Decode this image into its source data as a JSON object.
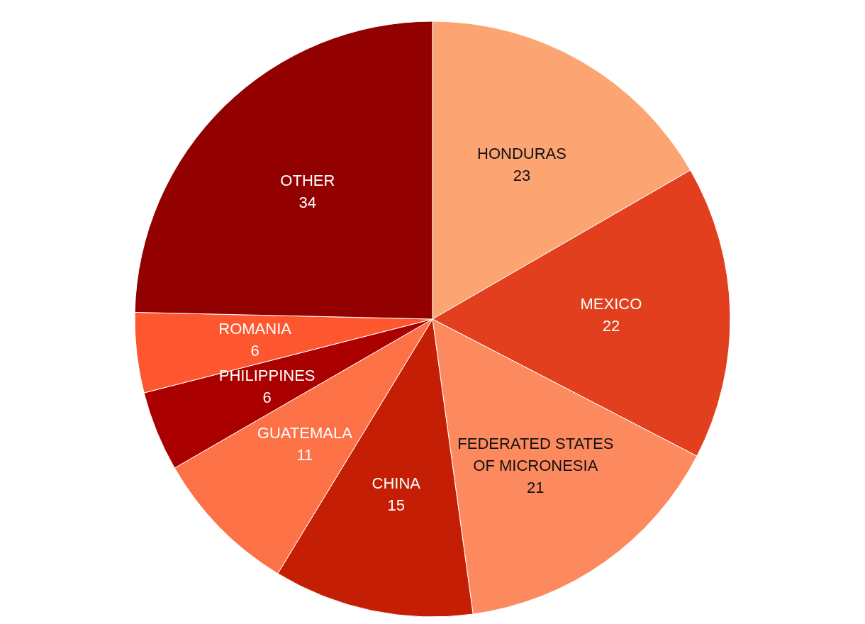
{
  "chart_data": {
    "type": "pie",
    "categories": [
      "HONDURAS",
      "MEXICO",
      "FEDERATED STATES OF MICRONESIA",
      "CHINA",
      "GUATEMALA",
      "PHILIPPINES",
      "ROMANIA",
      "OTHER"
    ],
    "values": [
      23,
      22,
      21,
      15,
      11,
      6,
      6,
      34
    ],
    "colors": [
      "#fca572",
      "#e13f1d",
      "#fd8a5e",
      "#c41f05",
      "#fd7147",
      "#ab0000",
      "#fe572f",
      "#920000"
    ],
    "data_labels": true
  }
}
